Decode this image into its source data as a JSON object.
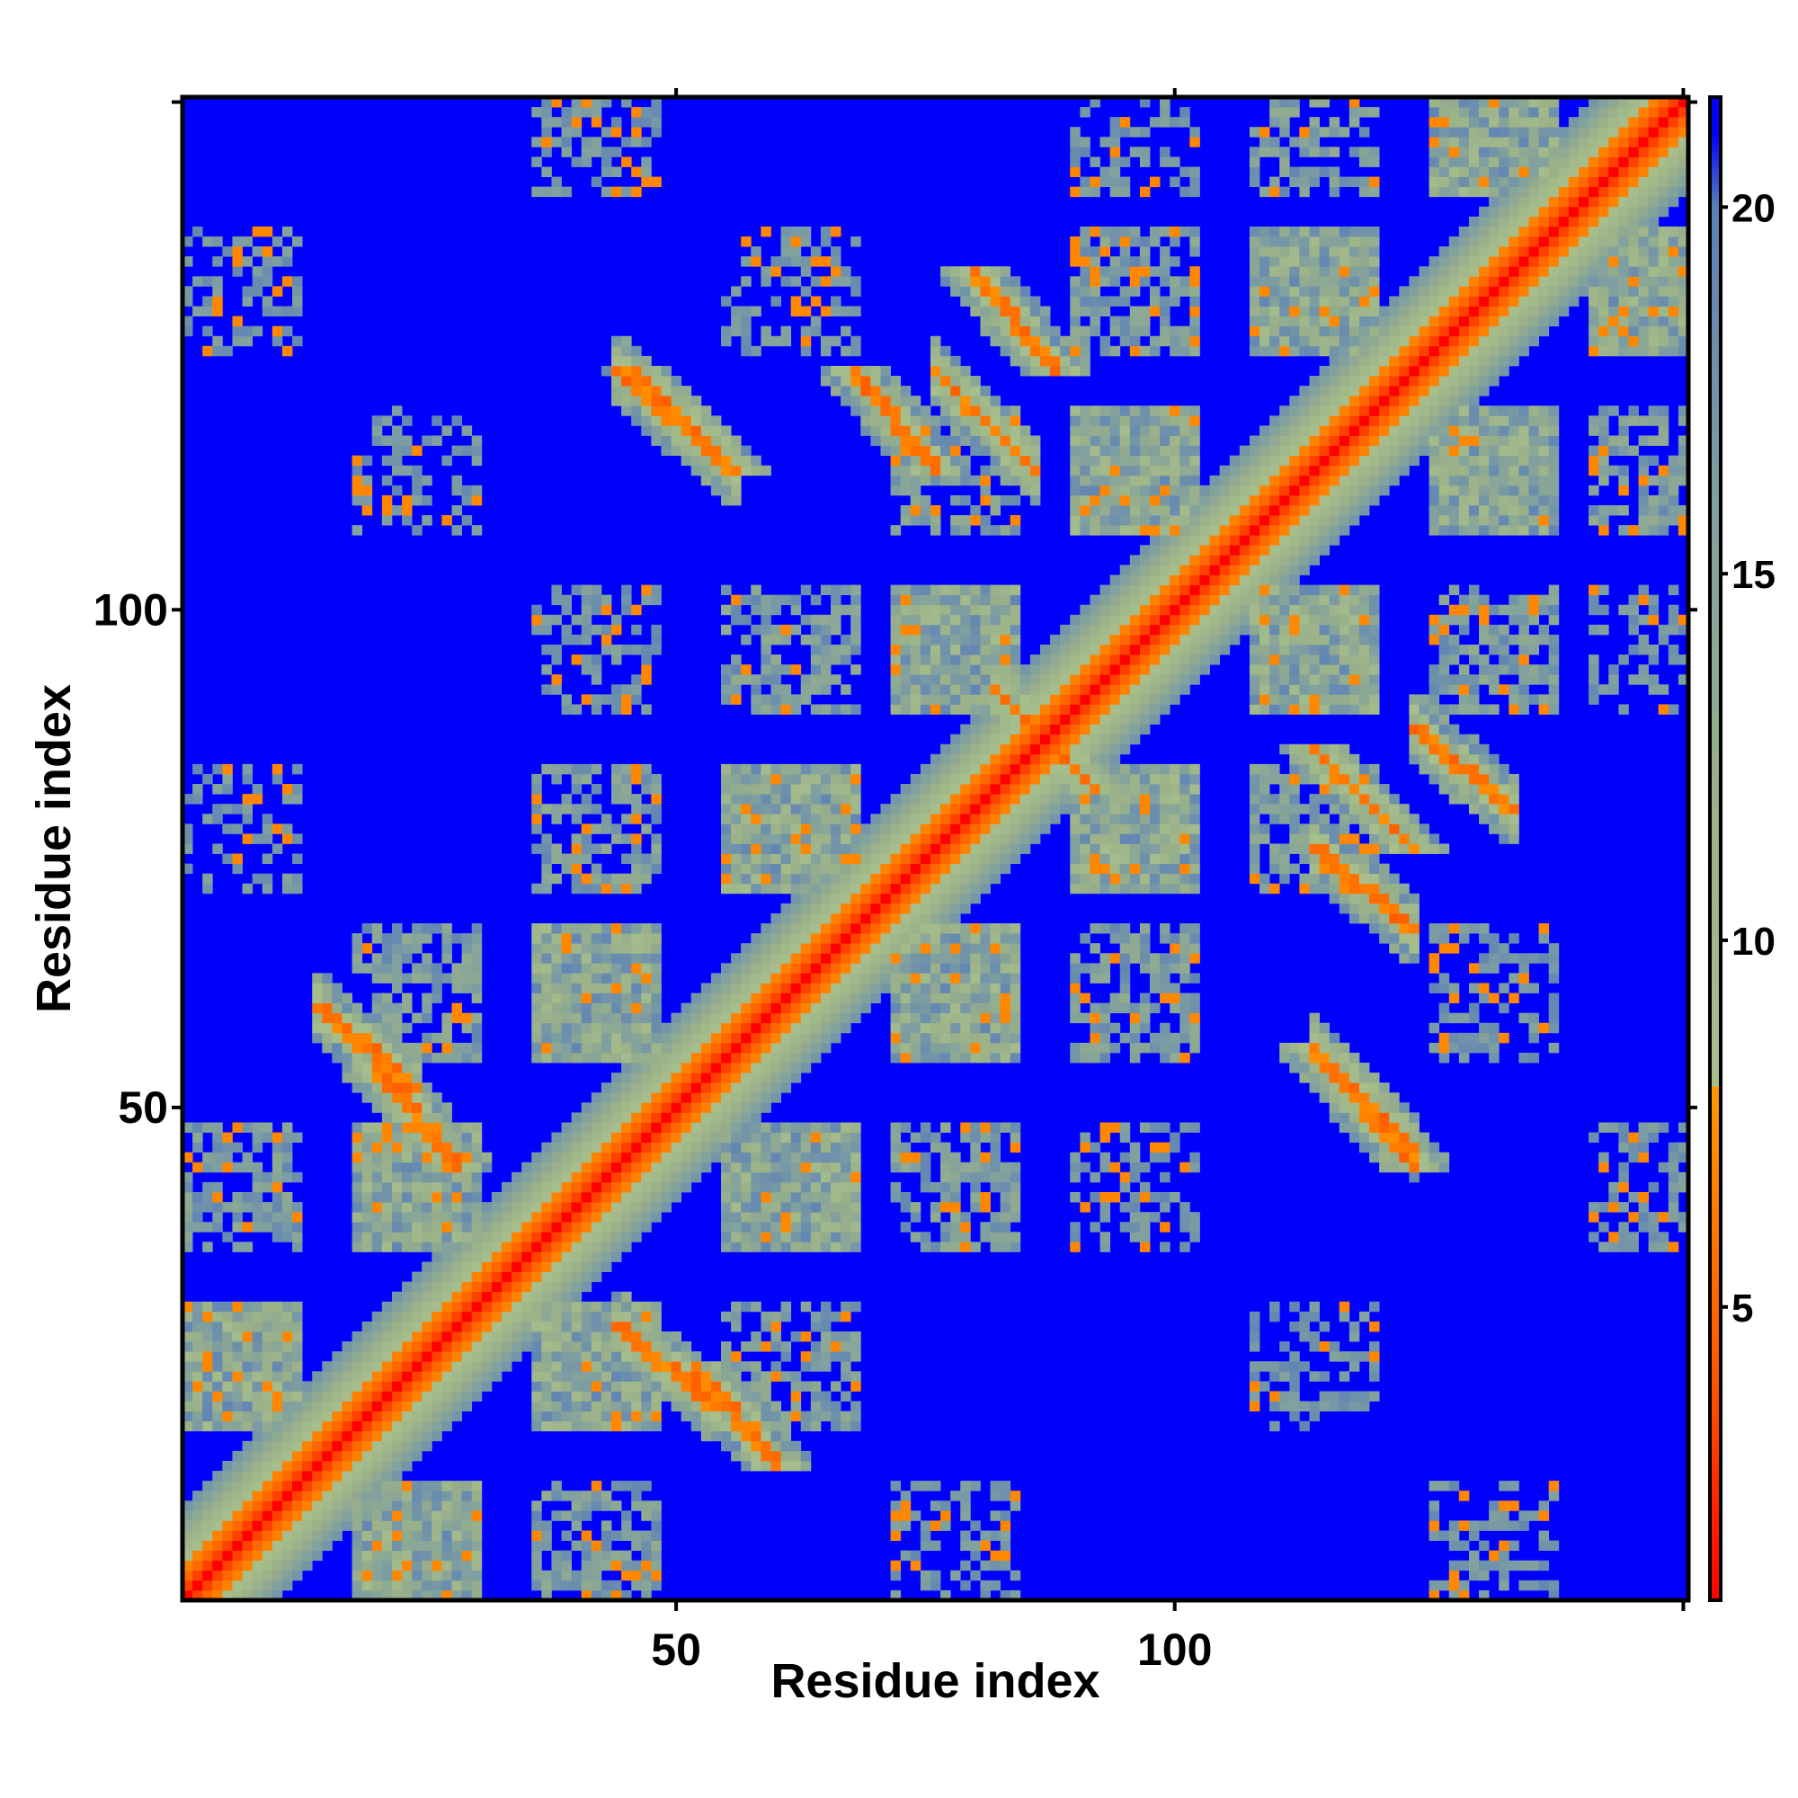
{
  "chart_data": {
    "type": "heatmap",
    "xlabel": "Residue index",
    "ylabel": "Residue index",
    "n_residues": 151,
    "xlim": [
      1,
      151
    ],
    "ylim": [
      1,
      151
    ],
    "x_ticks": [
      50,
      100
    ],
    "y_ticks": [
      50,
      100
    ],
    "colorbar": {
      "range": [
        1,
        21.5
      ],
      "ticks": [
        5,
        10,
        15,
        20
      ],
      "stops": [
        {
          "value": 1,
          "color": "#ff0000"
        },
        {
          "value": 4,
          "color": "#ff5500"
        },
        {
          "value": 8,
          "color": "#ff9900"
        },
        {
          "value": 8.01,
          "color": "#a8bf8c"
        },
        {
          "value": 12,
          "color": "#99b08a"
        },
        {
          "value": 16,
          "color": "#7f9fa0"
        },
        {
          "value": 20,
          "color": "#5b80b8"
        },
        {
          "value": 21,
          "color": "#0000ff"
        }
      ]
    },
    "secondary_structure_segments": [
      [
        1,
        12
      ],
      [
        18,
        30
      ],
      [
        36,
        48
      ],
      [
        55,
        68
      ],
      [
        72,
        84
      ],
      [
        90,
        102
      ],
      [
        108,
        120
      ],
      [
        126,
        138
      ],
      [
        142,
        151
      ]
    ],
    "off_diagonal_contact_bands": [
      {
        "i_start": 14,
        "i_end": 24,
        "j_start": 60,
        "j_end": 52
      },
      {
        "i_start": 44,
        "i_end": 54,
        "j_start": 28,
        "j_end": 20
      },
      {
        "i_start": 44,
        "i_end": 56,
        "j_start": 124,
        "j_end": 114
      },
      {
        "i_start": 76,
        "i_end": 86,
        "j_start": 124,
        "j_end": 114
      },
      {
        "i_start": 82,
        "i_end": 90,
        "j_start": 92,
        "j_end": 84
      },
      {
        "i_start": 114,
        "i_end": 124,
        "j_start": 76,
        "j_end": 68
      },
      {
        "i_start": 114,
        "i_end": 124,
        "j_start": 56,
        "j_end": 46
      },
      {
        "i_start": 124,
        "i_end": 134,
        "j_start": 88,
        "j_end": 80
      }
    ],
    "background_value": 21,
    "max_distance": 21.5
  }
}
